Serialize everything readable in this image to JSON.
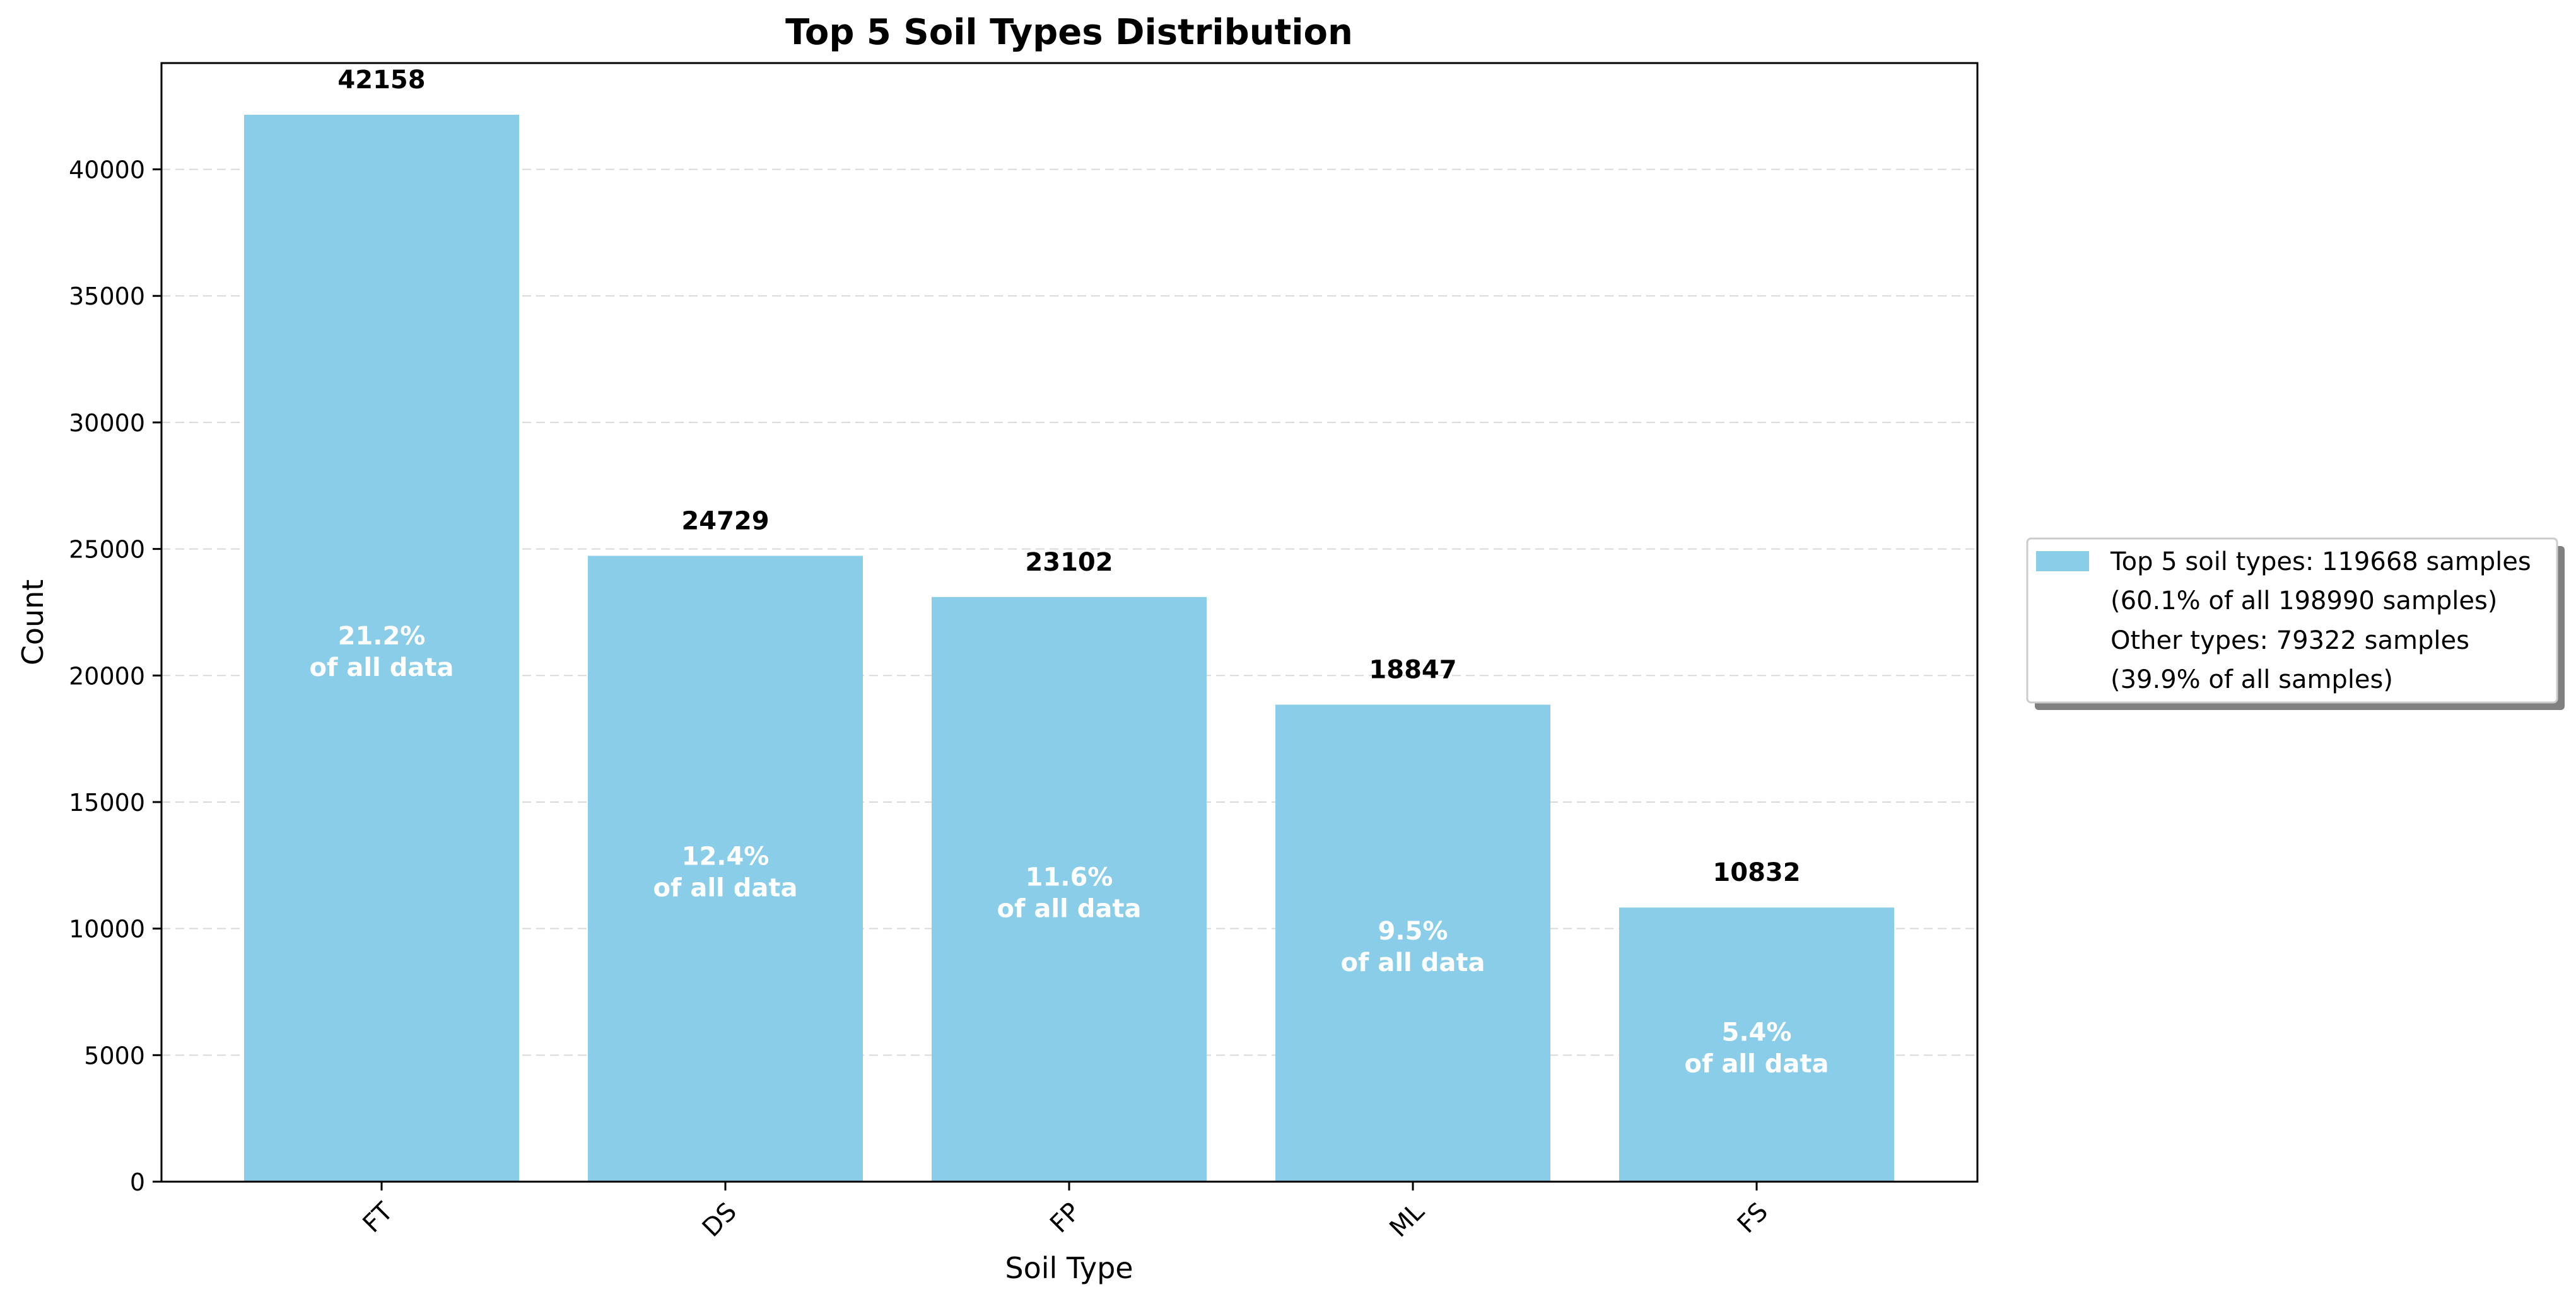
{
  "chart_data": {
    "type": "bar",
    "title": "Top 5 Soil Types Distribution",
    "xlabel": "Soil Type",
    "ylabel": "Count",
    "categories": [
      "FT",
      "DS",
      "FP",
      "ML",
      "FS"
    ],
    "values": [
      42158,
      24729,
      23102,
      18847,
      10832
    ],
    "percent_labels": [
      "21.2%",
      "12.4%",
      "11.6%",
      "9.5%",
      "5.4%"
    ],
    "percent_suffix": "of all data",
    "ylim": [
      0,
      44200
    ],
    "yticks": [
      0,
      5000,
      10000,
      15000,
      20000,
      25000,
      30000,
      35000,
      40000
    ],
    "grid": "horizontal-dashed",
    "bar_color": "#89CDE9",
    "legend_position": "outside-right",
    "legend": [
      "Top 5 soil types: 119668 samples",
      "(60.1% of all 198990 samples)",
      "Other types: 79322 samples",
      "(39.9% of all samples)"
    ]
  }
}
